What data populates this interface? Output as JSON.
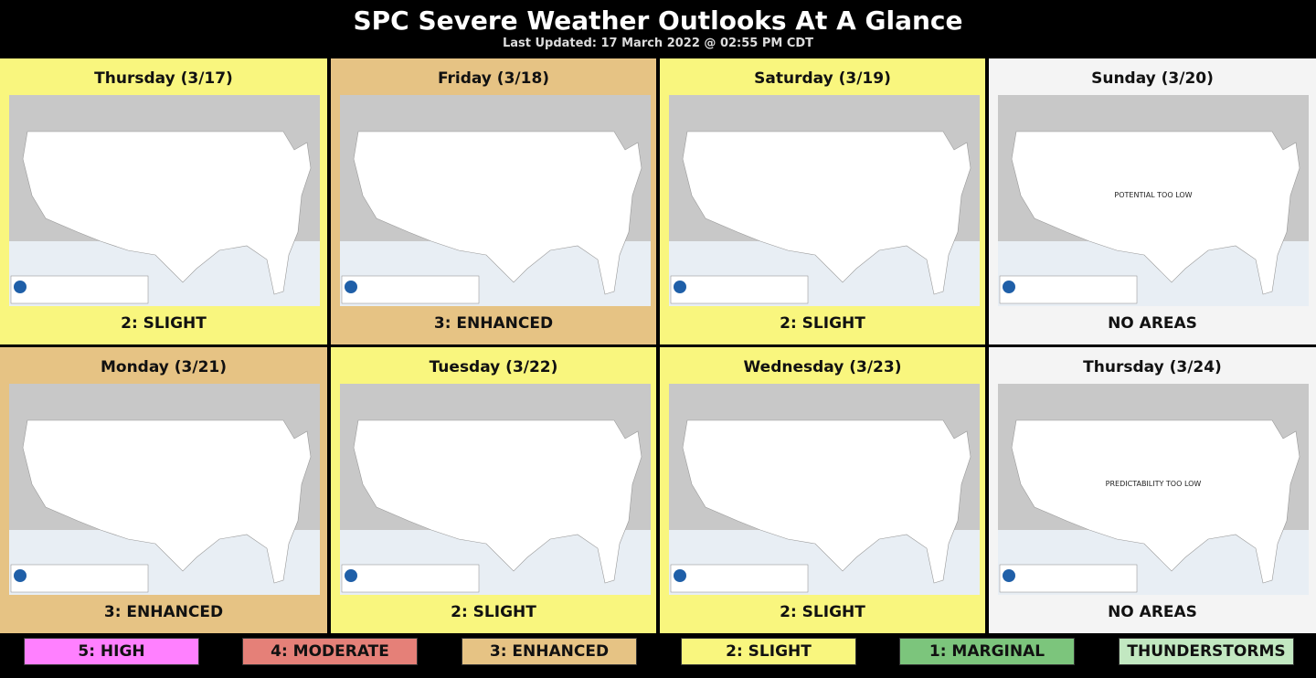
{
  "header": {
    "title": "SPC Severe Weather Outlooks At A Glance",
    "subtitle": "Last Updated: 17 March 2022 @ 02:55 PM CDT"
  },
  "days": [
    {
      "title": "Thursday (3/17)",
      "risk": "2: SLIGHT",
      "color": "#f9f67e"
    },
    {
      "title": "Friday (3/18)",
      "risk": "3: ENHANCED",
      "color": "#e6c384"
    },
    {
      "title": "Saturday (3/19)",
      "risk": "2: SLIGHT",
      "color": "#f9f67e"
    },
    {
      "title": "Sunday (3/20)",
      "risk": "NO AREAS",
      "color": "#f4f4f4",
      "map_note": "POTENTIAL TOO LOW"
    },
    {
      "title": "Monday (3/21)",
      "risk": "3: ENHANCED",
      "color": "#e6c384"
    },
    {
      "title": "Tuesday (3/22)",
      "risk": "2: SLIGHT",
      "color": "#f9f67e"
    },
    {
      "title": "Wednesday (3/23)",
      "risk": "2: SLIGHT",
      "color": "#f9f67e"
    },
    {
      "title": "Thursday (3/24)",
      "risk": "NO AREAS",
      "color": "#f4f4f4",
      "map_note": "PREDICTABILITY TOO LOW"
    }
  ],
  "legend": [
    {
      "label": "5: HIGH",
      "color": "#ff80ff"
    },
    {
      "label": "4: MODERATE",
      "color": "#e58078"
    },
    {
      "label": "3: ENHANCED",
      "color": "#e6c384"
    },
    {
      "label": "2: SLIGHT",
      "color": "#f9f67e"
    },
    {
      "label": "1: MARGINAL",
      "color": "#7cc57c"
    },
    {
      "label": "THUNDERSTORMS",
      "color": "#c2e8c1"
    }
  ]
}
